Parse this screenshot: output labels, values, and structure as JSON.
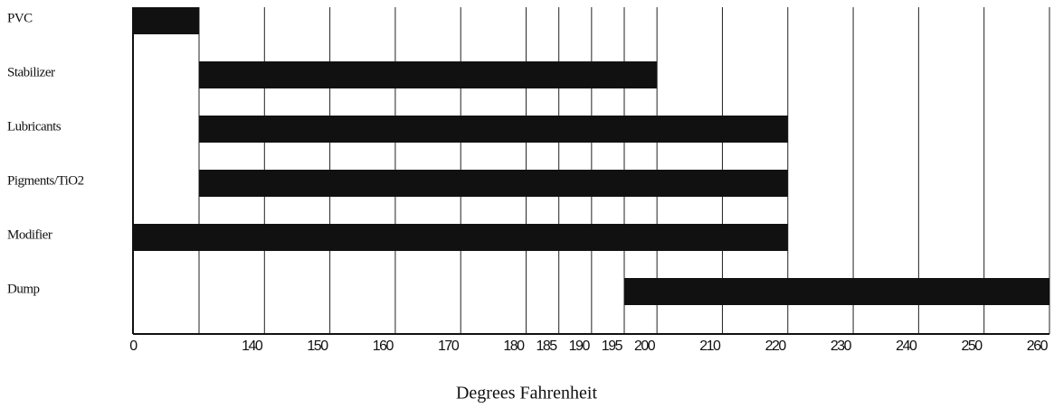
{
  "chart_data": {
    "type": "gantt",
    "categories": [
      "PVC",
      "Stabilizer",
      "Lubricants",
      "Pigments/TiO2",
      "Modifier",
      "Dump"
    ],
    "start": [
      0,
      130,
      130,
      130,
      0,
      195
    ],
    "end": [
      130,
      200,
      220,
      220,
      220,
      260
    ],
    "color": "#111111",
    "xlim": [
      0,
      260
    ],
    "x_break": [
      0,
      130
    ],
    "xticks": [
      0,
      {
        "value": 130,
        "label": null
      },
      140,
      150,
      160,
      170,
      180,
      185,
      190,
      195,
      200,
      210,
      220,
      230,
      240,
      250,
      260
    ],
    "xlabel": "Degrees Fahrenheit",
    "grid": true
  }
}
